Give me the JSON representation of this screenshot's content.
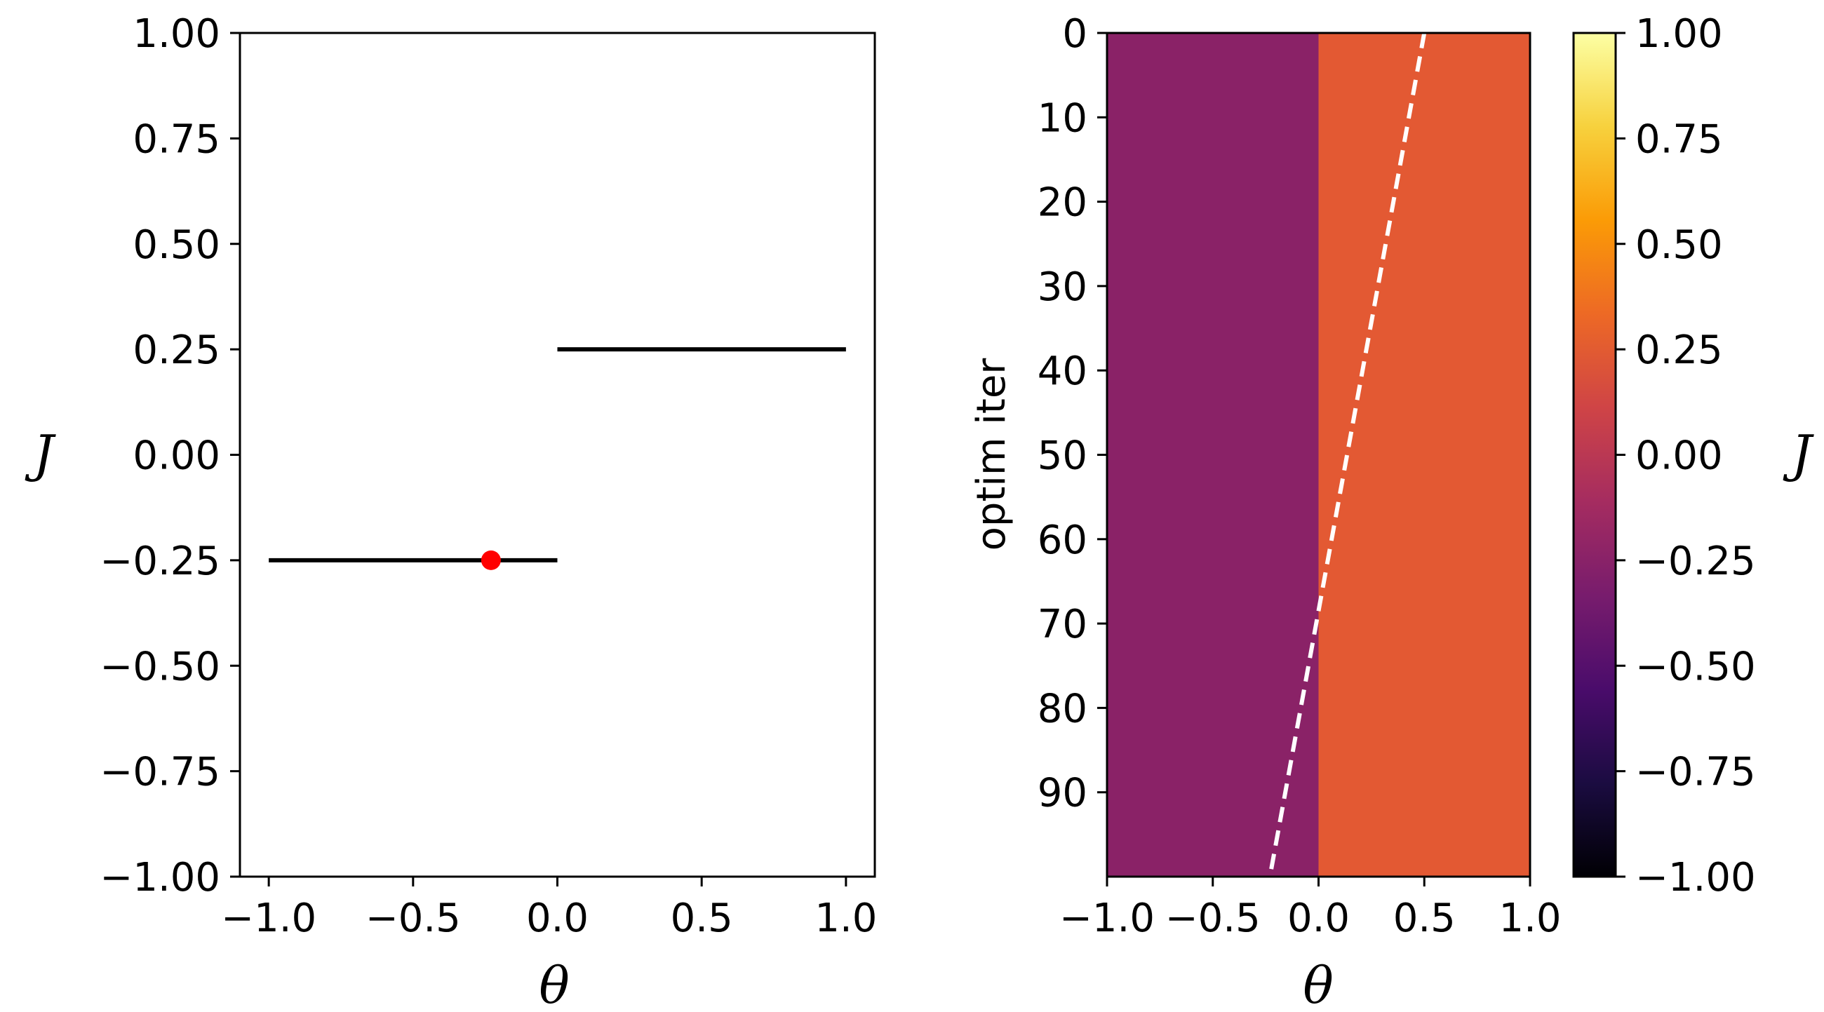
{
  "chart_data": [
    {
      "type": "line",
      "xlabel": "θ",
      "ylabel": "J",
      "xlim": [
        -1.1,
        1.1
      ],
      "ylim": [
        -1.0,
        1.0
      ],
      "xticks": [
        -1.0,
        -0.5,
        0.0,
        0.5,
        1.0
      ],
      "xtick_labels": [
        "−1.0",
        "−0.5",
        "0.0",
        "0.5",
        "1.0"
      ],
      "yticks": [
        1.0,
        0.75,
        0.5,
        0.25,
        0.0,
        -0.25,
        -0.5,
        -0.75,
        -1.0
      ],
      "ytick_labels": [
        "1.00",
        "0.75",
        "0.50",
        "0.25",
        "0.00",
        "−0.25",
        "−0.50",
        "−0.75",
        "−1.00"
      ],
      "grid": false,
      "series": [
        {
          "x": [
            -1.0,
            0.0
          ],
          "y": [
            -0.25,
            -0.25
          ],
          "color": "#000000"
        },
        {
          "x": [
            0.0,
            1.0
          ],
          "y": [
            0.25,
            0.25
          ],
          "color": "#000000"
        }
      ],
      "points": [
        {
          "x": -0.23,
          "y": -0.25,
          "color": "#ff0000"
        }
      ]
    },
    {
      "type": "heatmap",
      "xlabel": "θ",
      "ylabel": "optim iter",
      "colorbar_label": "J",
      "colormap": "inferno",
      "xlim": [
        -1.0,
        1.0
      ],
      "ylim": [
        100,
        0
      ],
      "xticks": [
        -1.0,
        -0.5,
        0.0,
        0.5,
        1.0
      ],
      "xtick_labels": [
        "−1.0",
        "−0.5",
        "0.0",
        "0.5",
        "1.0"
      ],
      "yticks": [
        0,
        10,
        20,
        30,
        40,
        50,
        60,
        70,
        80,
        90
      ],
      "ytick_labels": [
        "0",
        "10",
        "20",
        "30",
        "40",
        "50",
        "60",
        "70",
        "80",
        "90"
      ],
      "regions": [
        {
          "x_from": -1.0,
          "x_to": 0.0,
          "value": -0.25,
          "color": "#8a2267"
        },
        {
          "x_from": 0.0,
          "x_to": 1.0,
          "value": 0.25,
          "color": "#e35933"
        }
      ],
      "trajectory": {
        "style": "dashed",
        "color": "#ffffff",
        "points": [
          {
            "iter": 0,
            "theta": 0.5
          },
          {
            "iter": 100,
            "theta": -0.23
          }
        ]
      },
      "colorbar": {
        "range": [
          -1.0,
          1.0
        ],
        "ticks": [
          1.0,
          0.75,
          0.5,
          0.25,
          0.0,
          -0.25,
          -0.5,
          -0.75,
          -1.0
        ],
        "tick_labels": [
          "1.00",
          "0.75",
          "0.50",
          "0.25",
          "0.00",
          "−0.25",
          "−0.50",
          "−0.75",
          "−1.00"
        ],
        "stops": [
          "#000004",
          "#1b0c41",
          "#4a0c6b",
          "#781c6d",
          "#a52c60",
          "#cf4446",
          "#ed6925",
          "#fb9b06",
          "#f7d13d",
          "#fcffa4"
        ]
      }
    }
  ]
}
